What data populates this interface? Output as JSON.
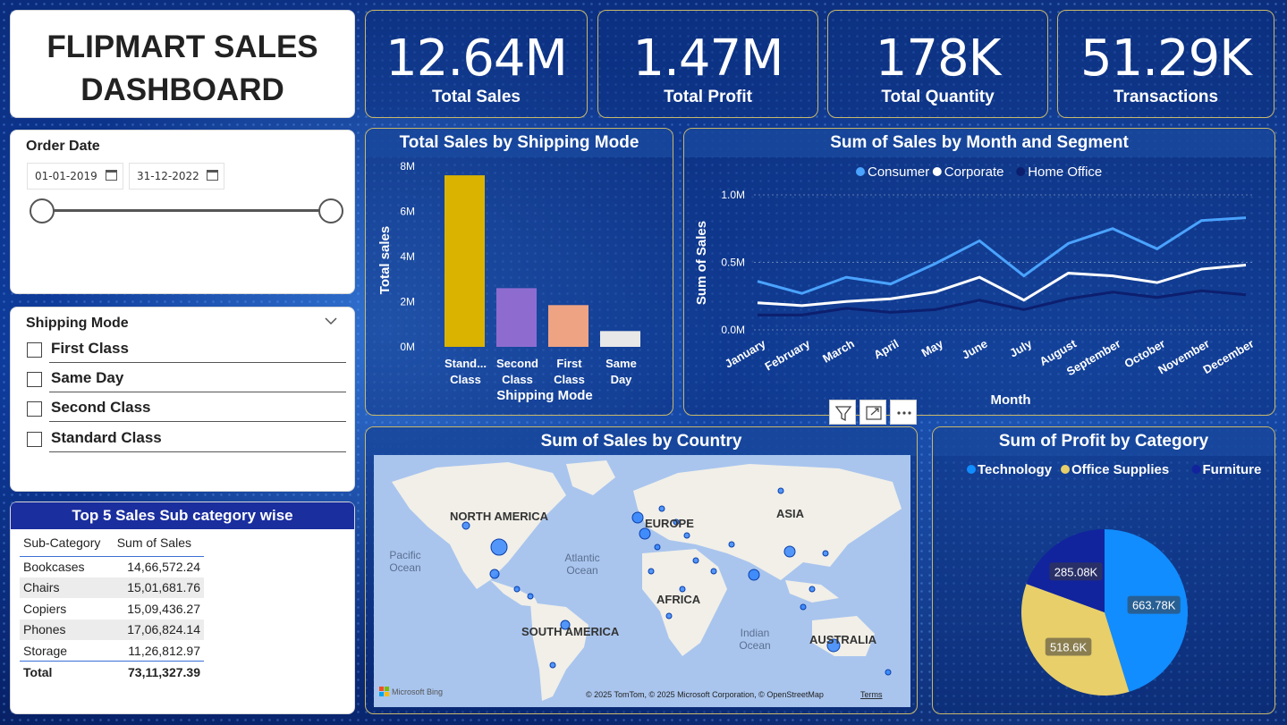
{
  "title": "FLIPMART SALES DASHBOARD",
  "kpis": [
    {
      "value": "12.64M",
      "label": "Total Sales"
    },
    {
      "value": "1.47M",
      "label": "Total Profit"
    },
    {
      "value": "178K",
      "label": "Total Quantity"
    },
    {
      "value": "51.29K",
      "label": "Transactions"
    }
  ],
  "order_date": {
    "title": "Order Date",
    "start": "01-01-2019",
    "end": "31-12-2022"
  },
  "shipping_slicer": {
    "title": "Shipping Mode",
    "options": [
      "First Class",
      "Same Day",
      "Second Class",
      "Standard Class"
    ]
  },
  "top5": {
    "title": "Top 5 Sales Sub category wise",
    "headers": [
      "Sub-Category",
      "Sum of Sales"
    ],
    "rows": [
      [
        "Bookcases",
        "14,66,572.24"
      ],
      [
        "Chairs",
        "15,01,681.76"
      ],
      [
        "Copiers",
        "15,09,436.27"
      ],
      [
        "Phones",
        "17,06,824.14"
      ],
      [
        "Storage",
        "11,26,812.97"
      ]
    ],
    "total_label": "Total",
    "total_value": "73,11,327.39"
  },
  "shipping_chart_title": "Total Sales by Shipping Mode",
  "month_chart_title": "Sum of Sales by Month and Segment",
  "map": {
    "title": "Sum of Sales by Country",
    "labels": {
      "north_america": "NORTH AMERICA",
      "europe": "EUROPE",
      "asia": "ASIA",
      "africa": "AFRICA",
      "south_america": "SOUTH AMERICA",
      "australia": "AUSTRALIA",
      "pacific1": "Pacific",
      "pacific2": "Ocean",
      "atlantic1": "Atlantic",
      "atlantic2": "Ocean",
      "indian1": "Indian",
      "indian2": "Ocean"
    },
    "bing": "Microsoft Bing",
    "copyright": "© 2025 TomTom, © 2025 Microsoft Corporation, © OpenStreetMap",
    "terms": "Terms"
  },
  "pie_title": "Sum of Profit by Category",
  "colors": {
    "technology": "#118dff",
    "office_supplies": "#e8cf6a",
    "furniture": "#12239e",
    "consumer": "#4aa3ff",
    "corporate": "#ffffff",
    "home_office": "#0c1f6e"
  },
  "chart_data": [
    {
      "type": "bar",
      "title": "Total Sales by Shipping Mode",
      "categories": [
        "Stand... Class",
        "Second Class",
        "First Class",
        "Same Day"
      ],
      "values": [
        7.6,
        2.6,
        1.85,
        0.7
      ],
      "unit": "M",
      "colors": [
        "#d9b300",
        "#8e6ccf",
        "#eea383",
        "#e8e8e8"
      ],
      "xlabel": "Shipping Mode",
      "ylabel": "Total sales",
      "yticks": [
        "0M",
        "2M",
        "4M",
        "6M",
        "8M"
      ],
      "ylim": [
        0,
        8
      ]
    },
    {
      "type": "line",
      "title": "Sum of Sales by Month and Segment",
      "categories": [
        "January",
        "February",
        "March",
        "April",
        "May",
        "June",
        "July",
        "August",
        "September",
        "October",
        "November",
        "December"
      ],
      "series": [
        {
          "name": "Consumer",
          "color": "#4aa3ff",
          "values": [
            0.36,
            0.27,
            0.39,
            0.34,
            0.49,
            0.66,
            0.4,
            0.64,
            0.75,
            0.6,
            0.81,
            0.83
          ]
        },
        {
          "name": "Corporate",
          "color": "#ffffff",
          "values": [
            0.2,
            0.18,
            0.21,
            0.23,
            0.28,
            0.39,
            0.22,
            0.42,
            0.4,
            0.35,
            0.45,
            0.48
          ]
        },
        {
          "name": "Home Office",
          "color": "#0c1f6e",
          "values": [
            0.11,
            0.11,
            0.16,
            0.13,
            0.15,
            0.22,
            0.15,
            0.23,
            0.28,
            0.24,
            0.29,
            0.26
          ]
        }
      ],
      "xlabel": "Month",
      "ylabel": "Sum of Sales",
      "yticks": [
        "0.0M",
        "0.5M",
        "1.0M"
      ],
      "ylim": [
        0,
        1.0
      ]
    },
    {
      "type": "pie",
      "title": "Sum of Profit by Category",
      "labels": [
        "Technology",
        "Office Supplies",
        "Furniture"
      ],
      "values": [
        663.78,
        518.6,
        285.08
      ],
      "value_labels": [
        "663.78K",
        "518.6K",
        "285.08K"
      ],
      "colors": [
        "#118dff",
        "#e8cf6a",
        "#12239e"
      ]
    }
  ]
}
